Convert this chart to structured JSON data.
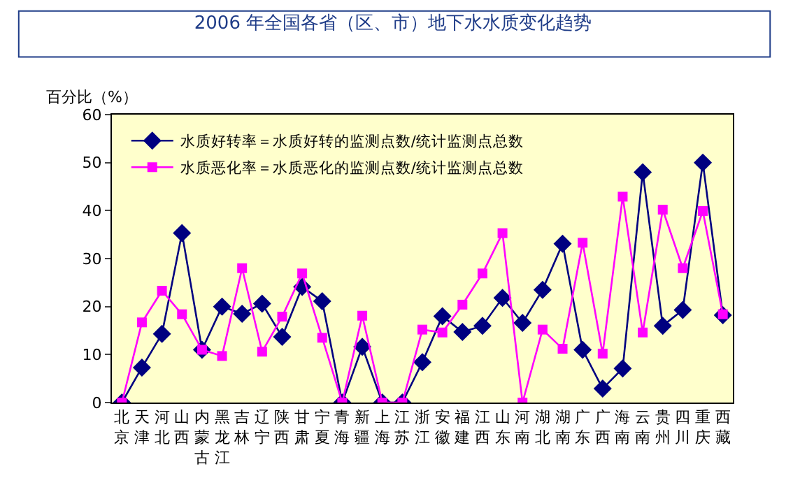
{
  "chart_data": {
    "type": "line",
    "title": "2006 年全国各省（区、市）地下水水质变化趋势",
    "ylabel": "百分比（%）",
    "categories": [
      "北京",
      "天津",
      "河北",
      "山西",
      "内蒙古",
      "黑龙江",
      "吉林",
      "辽宁",
      "陕西",
      "甘肃",
      "宁夏",
      "青海",
      "新疆",
      "上海",
      "江苏",
      "浙江",
      "安徽",
      "福建",
      "江西",
      "山东",
      "河南",
      "湖北",
      "湖南",
      "广东",
      "广西",
      "海南",
      "云南",
      "贵州",
      "四川",
      "重庆",
      "西藏"
    ],
    "series": [
      {
        "name": "水质好转率＝水质好转的监测点数/统计监测点总数",
        "color": "#000080",
        "marker": "diamond",
        "values": [
          0,
          7.3,
          14.3,
          35.3,
          11,
          20,
          18.5,
          20.6,
          13.7,
          24.1,
          21.1,
          0,
          11.6,
          0,
          0,
          8.4,
          18.0,
          14.7,
          16.0,
          21.8,
          16.6,
          23.5,
          33.1,
          11.0,
          2.9,
          7.1,
          48.0,
          16.0,
          19.3,
          50.0,
          18.2
        ]
      },
      {
        "name": "水质恶化率＝水质恶化的监测点数/统计监测点总数",
        "color": "#ff00ff",
        "marker": "square",
        "values": [
          0,
          16.7,
          23.3,
          18.4,
          11,
          9.7,
          28,
          10.6,
          17.9,
          26.9,
          13.5,
          0,
          18.1,
          0,
          0,
          15.2,
          14.6,
          20.4,
          26.9,
          35.3,
          0,
          15.2,
          11.2,
          33.3,
          10.2,
          42.9,
          14.6,
          40.2,
          28.0,
          39.9,
          18.4
        ]
      }
    ],
    "ylim": [
      0,
      60
    ],
    "yticks": [
      0,
      10,
      20,
      30,
      40,
      50,
      60
    ],
    "grid": false,
    "legend": "top left",
    "line_style": "solid"
  }
}
